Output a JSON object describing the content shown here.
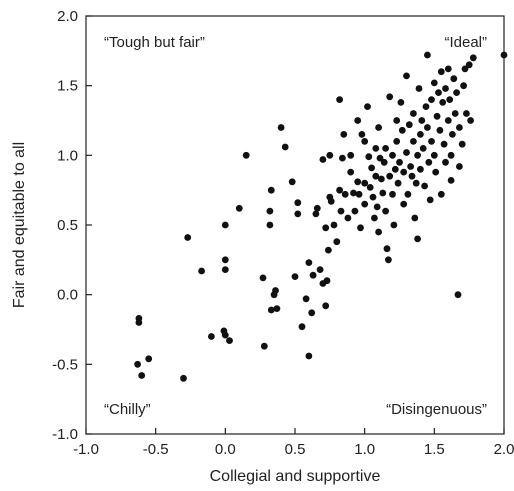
{
  "chart_data": {
    "type": "scatter",
    "title": "",
    "xlabel": "Collegial and supportive",
    "ylabel": "Fair and equitable to all",
    "xlim": [
      -1.0,
      2.0
    ],
    "ylim": [
      -1.0,
      2.0
    ],
    "xticks": [
      "-1.0",
      "-0.5",
      "0.0",
      "0.5",
      "1.0",
      "1.5",
      "2.0"
    ],
    "yticks": [
      "-1.0",
      "-0.5",
      "0.0",
      "0.5",
      "1.0",
      "1.5",
      "2.0"
    ],
    "grid": false,
    "point_color": "#111111",
    "annotations": {
      "top_left": "“Tough but fair”",
      "top_right": "“Ideal”",
      "bottom_left": "“Chilly”",
      "bottom_right": "“Disingenuous”"
    },
    "points": [
      [
        -0.63,
        -0.5
      ],
      [
        -0.6,
        -0.58
      ],
      [
        -0.62,
        -0.17
      ],
      [
        -0.62,
        -0.2
      ],
      [
        -0.55,
        -0.46
      ],
      [
        -0.3,
        -0.6
      ],
      [
        -0.27,
        0.41
      ],
      [
        -0.17,
        0.17
      ],
      [
        -0.1,
        -0.3
      ],
      [
        0.0,
        0.25
      ],
      [
        0.0,
        0.18
      ],
      [
        0.0,
        0.5
      ],
      [
        -0.01,
        -0.26
      ],
      [
        0.0,
        -0.29
      ],
      [
        0.03,
        -0.33
      ],
      [
        0.1,
        0.62
      ],
      [
        0.15,
        1.0
      ],
      [
        0.27,
        0.12
      ],
      [
        0.28,
        -0.37
      ],
      [
        0.32,
        0.5
      ],
      [
        0.32,
        0.6
      ],
      [
        0.33,
        0.75
      ],
      [
        0.33,
        -0.11
      ],
      [
        0.35,
        0.0
      ],
      [
        0.36,
        0.03
      ],
      [
        0.37,
        -0.1
      ],
      [
        0.4,
        1.2
      ],
      [
        0.43,
        1.06
      ],
      [
        0.48,
        0.81
      ],
      [
        0.5,
        0.13
      ],
      [
        0.52,
        0.66
      ],
      [
        0.52,
        0.58
      ],
      [
        0.55,
        -0.23
      ],
      [
        0.58,
        -0.03
      ],
      [
        0.6,
        0.23
      ],
      [
        0.6,
        -0.44
      ],
      [
        0.62,
        -0.13
      ],
      [
        0.63,
        0.14
      ],
      [
        0.65,
        0.58
      ],
      [
        0.66,
        0.62
      ],
      [
        0.68,
        0.18
      ],
      [
        0.7,
        0.08
      ],
      [
        0.7,
        0.97
      ],
      [
        0.72,
        0.48
      ],
      [
        0.72,
        -0.08
      ],
      [
        0.73,
        0.1
      ],
      [
        0.74,
        0.32
      ],
      [
        0.75,
        0.7
      ],
      [
        0.75,
        1.0
      ],
      [
        0.76,
        0.67
      ],
      [
        0.78,
        0.5
      ],
      [
        0.8,
        0.38
      ],
      [
        0.82,
        1.4
      ],
      [
        0.82,
        0.75
      ],
      [
        0.83,
        0.6
      ],
      [
        0.84,
        0.98
      ],
      [
        0.85,
        1.15
      ],
      [
        0.86,
        0.72
      ],
      [
        0.88,
        0.55
      ],
      [
        0.9,
        0.88
      ],
      [
        0.9,
        1.0
      ],
      [
        0.92,
        0.73
      ],
      [
        0.93,
        0.6
      ],
      [
        0.95,
        1.25
      ],
      [
        0.95,
        0.81
      ],
      [
        0.96,
        0.72
      ],
      [
        0.97,
        0.48
      ],
      [
        0.98,
        1.15
      ],
      [
        1.0,
        1.1
      ],
      [
        1.0,
        0.8
      ],
      [
        1.0,
        0.65
      ],
      [
        1.02,
        1.35
      ],
      [
        1.03,
        0.99
      ],
      [
        1.04,
        0.77
      ],
      [
        1.05,
        0.91
      ],
      [
        1.06,
        0.7
      ],
      [
        1.07,
        0.55
      ],
      [
        1.08,
        1.05
      ],
      [
        1.08,
        0.85
      ],
      [
        1.09,
        0.63
      ],
      [
        1.1,
        1.2
      ],
      [
        1.1,
        0.45
      ],
      [
        1.11,
        0.98
      ],
      [
        1.12,
        0.83
      ],
      [
        1.13,
        0.73
      ],
      [
        1.14,
        0.95
      ],
      [
        1.15,
        1.05
      ],
      [
        1.15,
        0.6
      ],
      [
        1.16,
        0.33
      ],
      [
        1.17,
        0.25
      ],
      [
        1.18,
        0.85
      ],
      [
        1.18,
        1.42
      ],
      [
        1.2,
        1.0
      ],
      [
        1.2,
        0.72
      ],
      [
        1.21,
        0.5
      ],
      [
        1.22,
        0.9
      ],
      [
        1.23,
        1.25
      ],
      [
        1.23,
        1.1
      ],
      [
        1.24,
        0.8
      ],
      [
        1.25,
        0.95
      ],
      [
        1.26,
        1.38
      ],
      [
        1.27,
        1.18
      ],
      [
        1.28,
        0.65
      ],
      [
        1.28,
        0.88
      ],
      [
        1.3,
        1.57
      ],
      [
        1.3,
        1.02
      ],
      [
        1.31,
        0.72
      ],
      [
        1.32,
        1.22
      ],
      [
        1.33,
        0.92
      ],
      [
        1.34,
        0.85
      ],
      [
        1.35,
        1.3
      ],
      [
        1.35,
        1.1
      ],
      [
        1.36,
        0.55
      ],
      [
        1.37,
        0.8
      ],
      [
        1.38,
        1.0
      ],
      [
        1.38,
        0.4
      ],
      [
        1.39,
        1.48
      ],
      [
        1.4,
        1.15
      ],
      [
        1.4,
        0.9
      ],
      [
        1.41,
        1.25
      ],
      [
        1.42,
        1.05
      ],
      [
        1.43,
        0.78
      ],
      [
        1.44,
        1.35
      ],
      [
        1.45,
        1.2
      ],
      [
        1.45,
        1.72
      ],
      [
        1.46,
        0.95
      ],
      [
        1.47,
        0.68
      ],
      [
        1.48,
        1.4
      ],
      [
        1.48,
        1.1
      ],
      [
        1.5,
        1.52
      ],
      [
        1.5,
        1.0
      ],
      [
        1.51,
        0.88
      ],
      [
        1.52,
        1.28
      ],
      [
        1.53,
        1.45
      ],
      [
        1.54,
        1.18
      ],
      [
        1.55,
        0.72
      ],
      [
        1.55,
        1.6
      ],
      [
        1.56,
        1.38
      ],
      [
        1.57,
        1.08
      ],
      [
        1.58,
        0.95
      ],
      [
        1.58,
        1.48
      ],
      [
        1.6,
        1.25
      ],
      [
        1.6,
        1.62
      ],
      [
        1.61,
        1.4
      ],
      [
        1.62,
        1.0
      ],
      [
        1.62,
        0.82
      ],
      [
        1.63,
        1.15
      ],
      [
        1.64,
        1.55
      ],
      [
        1.65,
        1.3
      ],
      [
        1.66,
        1.45
      ],
      [
        1.67,
        0.0
      ],
      [
        1.68,
        0.92
      ],
      [
        1.68,
        1.2
      ],
      [
        1.7,
        1.08
      ],
      [
        1.71,
        1.5
      ],
      [
        1.72,
        1.62
      ],
      [
        1.73,
        1.3
      ],
      [
        1.75,
        1.65
      ],
      [
        1.76,
        1.25
      ],
      [
        1.78,
        1.7
      ],
      [
        2.0,
        1.72
      ]
    ]
  }
}
